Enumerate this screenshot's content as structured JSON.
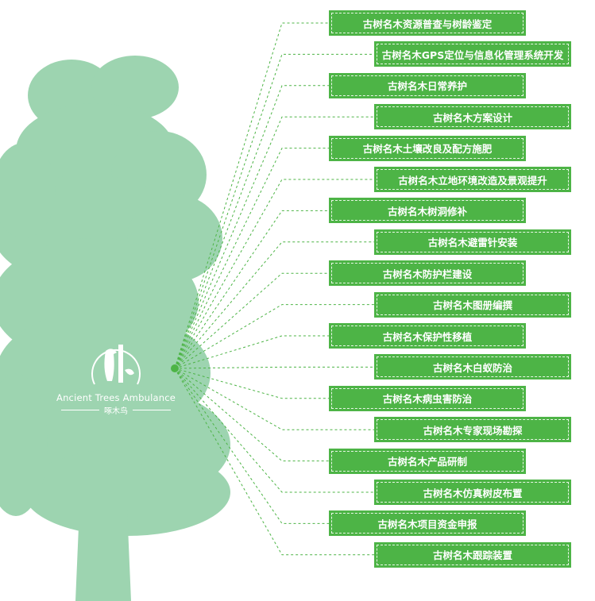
{
  "colors": {
    "box": "#4db446",
    "tree": "#9dd4b0",
    "line": "#4db446"
  },
  "logo": {
    "english": "Ancient Trees Ambulance",
    "chinese": "啄木鸟"
  },
  "items": [
    "古树名木资源普查与树龄鉴定",
    "古树名木GPS定位与信息化管理系统开发",
    "古树名木日常养护",
    "古树名木方案设计",
    "古树名木土壤改良及配方施肥",
    "古树名木立地环境改造及景观提升",
    "古树名木树洞修补",
    "古树名木避雷针安装",
    "古树名木防护栏建设",
    "古树名木图册编撰",
    "古树名木保护性移植",
    "古树名木白蚁防治",
    "古树名木病虫害防治",
    "古树名木专家现场勘探",
    "古树名木产品研制",
    "古树名木仿真树皮布置",
    "古树名木项目资金申报",
    "古树名木跟踪装置"
  ]
}
